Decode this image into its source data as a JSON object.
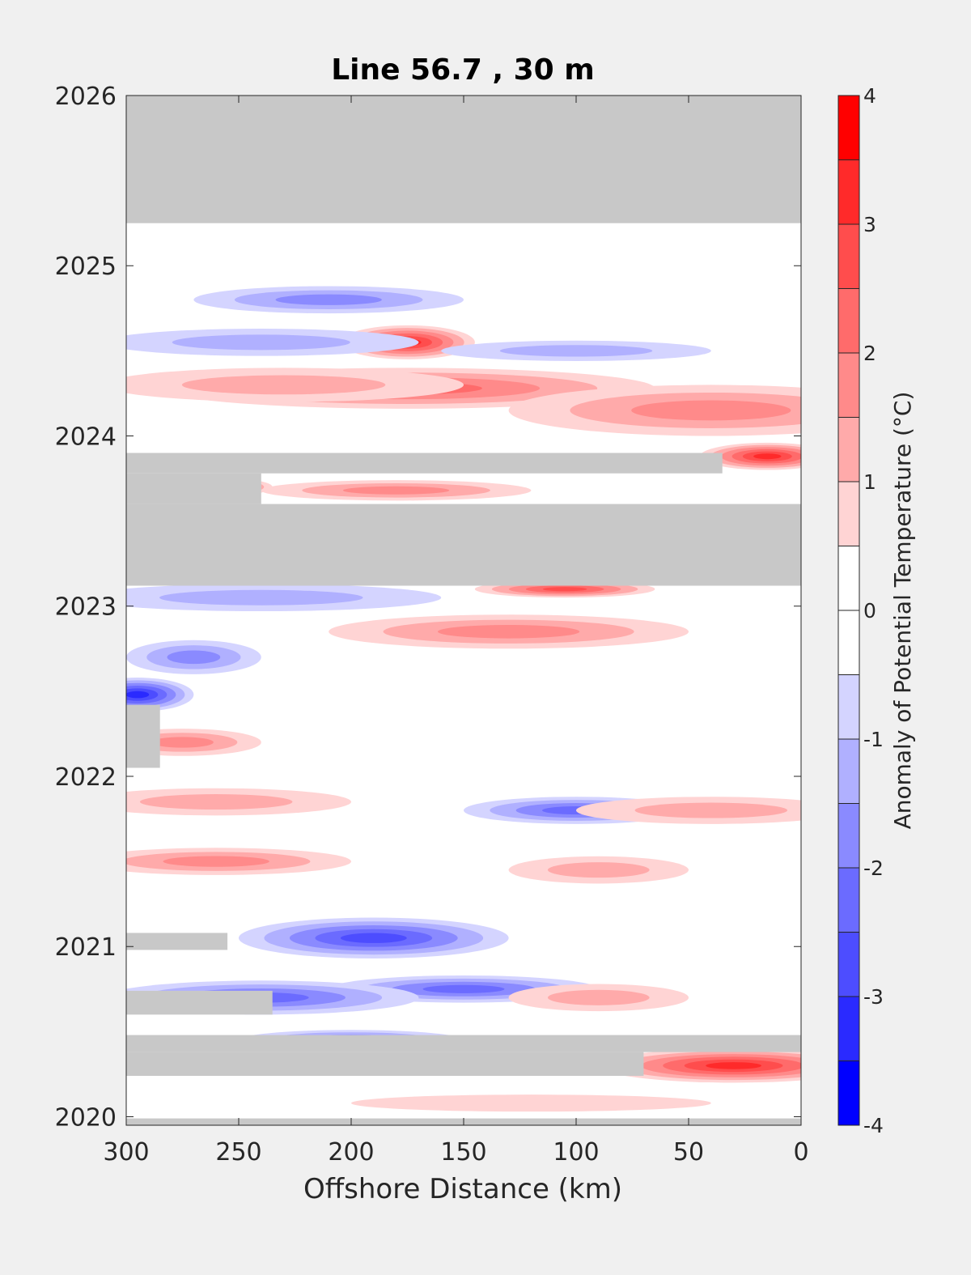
{
  "chart_data": {
    "type": "heatmap",
    "title": "Line 56.7 , 30 m",
    "xlabel": "Offshore Distance (km)",
    "ylabel": "",
    "xlim": [
      300,
      0
    ],
    "x_reversed": true,
    "ylim": [
      2019.95,
      2026
    ],
    "xticks": [
      300,
      250,
      200,
      150,
      100,
      50,
      0
    ],
    "yticks": [
      2020,
      2021,
      2022,
      2023,
      2024,
      2025,
      2026
    ],
    "colorbar": {
      "label": "Anomaly of Potential Temperature (°C)",
      "range": [
        -4,
        4
      ],
      "ticks": [
        -4,
        -3,
        -2,
        -1,
        0,
        1,
        2,
        3,
        4
      ],
      "levels": [
        {
          "from": 3.5,
          "to": 4.0,
          "color": "#ff0000"
        },
        {
          "from": 3.0,
          "to": 3.5,
          "color": "#ff2a2a"
        },
        {
          "from": 2.5,
          "to": 3.0,
          "color": "#ff4d4d"
        },
        {
          "from": 2.0,
          "to": 2.5,
          "color": "#ff6b6b"
        },
        {
          "from": 1.5,
          "to": 2.0,
          "color": "#ff8a8a"
        },
        {
          "from": 1.0,
          "to": 1.5,
          "color": "#ffaaaa"
        },
        {
          "from": 0.5,
          "to": 1.0,
          "color": "#ffd4d4"
        },
        {
          "from": 0.0,
          "to": 0.5,
          "color": "#ffffff"
        },
        {
          "from": -0.5,
          "to": 0.0,
          "color": "#ffffff"
        },
        {
          "from": -1.0,
          "to": -0.5,
          "color": "#d4d4ff"
        },
        {
          "from": -1.5,
          "to": -1.0,
          "color": "#b0b0ff"
        },
        {
          "from": -2.0,
          "to": -1.5,
          "color": "#8a8aff"
        },
        {
          "from": -2.5,
          "to": -2.0,
          "color": "#6b6bff"
        },
        {
          "from": -3.0,
          "to": -2.5,
          "color": "#4d4dff"
        },
        {
          "from": -3.5,
          "to": -3.0,
          "color": "#2a2aff"
        },
        {
          "from": -4.0,
          "to": -3.5,
          "color": "#0000ff"
        }
      ]
    },
    "missing_color": "#c8c8c8",
    "missing_periods": [
      {
        "y0": 2025.25,
        "y1": 2026.0,
        "x0": 0,
        "x1": 300
      },
      {
        "y0": 2023.12,
        "y1": 2023.6,
        "x0": 0,
        "x1": 300
      },
      {
        "y0": 2023.6,
        "y1": 2023.78,
        "x0": 240,
        "x1": 300
      },
      {
        "y0": 2023.78,
        "y1": 2023.9,
        "x0": 35,
        "x1": 300
      },
      {
        "y0": 2022.05,
        "y1": 2022.42,
        "x0": 285,
        "x1": 300
      },
      {
        "y0": 2020.98,
        "y1": 2021.08,
        "x0": 255,
        "x1": 300
      },
      {
        "y0": 2020.6,
        "y1": 2020.74,
        "x0": 235,
        "x1": 300
      },
      {
        "y0": 2020.38,
        "y1": 2020.48,
        "x0": 0,
        "x1": 300
      },
      {
        "y0": 2020.24,
        "y1": 2020.38,
        "x0": 70,
        "x1": 300
      },
      {
        "y0": 2019.95,
        "y1": 2019.99,
        "x0": 0,
        "x1": 300
      }
    ],
    "anomaly_features": [
      {
        "x": 175,
        "y": 2024.55,
        "value": 3.5,
        "rx": 30,
        "ry": 0.1
      },
      {
        "x": 175,
        "y": 2024.28,
        "value": 2.5,
        "rx": 110,
        "ry": 0.12
      },
      {
        "x": 230,
        "y": 2024.3,
        "value": 1.5,
        "rx": 80,
        "ry": 0.1
      },
      {
        "x": 40,
        "y": 2024.15,
        "value": 2.0,
        "rx": 90,
        "ry": 0.15
      },
      {
        "x": 15,
        "y": 2023.88,
        "value": 3.5,
        "rx": 30,
        "ry": 0.08
      },
      {
        "x": 255,
        "y": 2023.7,
        "value": 3.0,
        "rx": 20,
        "ry": 0.05
      },
      {
        "x": 180,
        "y": 2023.68,
        "value": 2.0,
        "rx": 60,
        "ry": 0.06
      },
      {
        "x": 105,
        "y": 2023.1,
        "value": 3.0,
        "rx": 40,
        "ry": 0.05
      },
      {
        "x": 130,
        "y": 2022.85,
        "value": 2.0,
        "rx": 80,
        "ry": 0.1
      },
      {
        "x": 210,
        "y": 2024.8,
        "value": -2.0,
        "rx": 60,
        "ry": 0.08
      },
      {
        "x": 240,
        "y": 2024.55,
        "value": -1.5,
        "rx": 70,
        "ry": 0.08
      },
      {
        "x": 100,
        "y": 2024.5,
        "value": -1.5,
        "rx": 60,
        "ry": 0.06
      },
      {
        "x": 240,
        "y": 2023.05,
        "value": -1.5,
        "rx": 80,
        "ry": 0.08
      },
      {
        "x": 270,
        "y": 2022.7,
        "value": -2.0,
        "rx": 30,
        "ry": 0.1
      },
      {
        "x": 295,
        "y": 2022.48,
        "value": -3.5,
        "rx": 25,
        "ry": 0.1
      },
      {
        "x": 275,
        "y": 2022.2,
        "value": 2.0,
        "rx": 35,
        "ry": 0.08
      },
      {
        "x": 100,
        "y": 2021.8,
        "value": -2.5,
        "rx": 50,
        "ry": 0.08
      },
      {
        "x": 40,
        "y": 2021.8,
        "value": 1.5,
        "rx": 60,
        "ry": 0.08
      },
      {
        "x": 260,
        "y": 2021.85,
        "value": 1.5,
        "rx": 60,
        "ry": 0.08
      },
      {
        "x": 260,
        "y": 2021.5,
        "value": 2.0,
        "rx": 60,
        "ry": 0.08
      },
      {
        "x": 90,
        "y": 2021.45,
        "value": 1.5,
        "rx": 40,
        "ry": 0.08
      },
      {
        "x": 190,
        "y": 2021.05,
        "value": -3.0,
        "rx": 60,
        "ry": 0.12
      },
      {
        "x": 150,
        "y": 2020.75,
        "value": -2.5,
        "rx": 60,
        "ry": 0.08
      },
      {
        "x": 240,
        "y": 2020.7,
        "value": -2.5,
        "rx": 70,
        "ry": 0.1
      },
      {
        "x": 200,
        "y": 2020.45,
        "value": -2.5,
        "rx": 50,
        "ry": 0.06
      },
      {
        "x": 90,
        "y": 2020.7,
        "value": 1.5,
        "rx": 40,
        "ry": 0.08
      },
      {
        "x": 30,
        "y": 2020.3,
        "value": 3.5,
        "rx": 60,
        "ry": 0.1
      },
      {
        "x": 120,
        "y": 2020.08,
        "value": 1.0,
        "rx": 80,
        "ry": 0.05
      }
    ]
  }
}
